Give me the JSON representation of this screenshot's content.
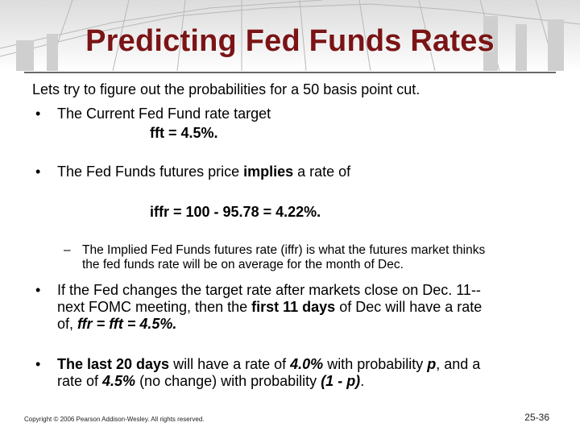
{
  "slide": {
    "title": "Predicting Fed Funds Rates",
    "intro": "Lets try to figure out the probabilities for a 50 basis point cut.",
    "bullet_symbol": "•",
    "dash_symbol": "–",
    "b1_text": "The Current Fed Fund rate target",
    "b1_formula": "fft = 4.5%.",
    "b2_pre": "The Fed Funds futures price ",
    "b2_bold": "implies",
    "b2_post": " a rate of",
    "b2_formula": "iffr =  100 - 95.78 =  4.22%.",
    "sub_line1": "The Implied Fed Funds futures rate (iffr) is what the futures market thinks",
    "sub_line2": "the fed funds rate will be on average for the month of Dec.",
    "b3_line1": "If the Fed changes the target rate after markets close on Dec. 11--",
    "b3_line2_pre": "next FOMC meeting, then the ",
    "b3_line2_bold": "first  11 days",
    "b3_line2_post": " of Dec will have a rate",
    "b3_line3_pre": "of, ",
    "b3_line3_bi": "ffr = fft =  4.5%.",
    "b4_line1_bold": "The last 20 days",
    "b4_line1_a": " will have a rate of ",
    "b4_line1_rate": "4.0%",
    "b4_line1_b": " with probability ",
    "b4_line1_p": "p",
    "b4_line1_c": ",  and a",
    "b4_line2_a": "rate of ",
    "b4_line2_rate": "4.5%",
    "b4_line2_b": " (no change) with probability ",
    "b4_line2_p": "(1 - p)",
    "b4_line2_c": "."
  },
  "footer": {
    "copyright": "Copyright © 2006 Pearson Addison-Wesley. All rights reserved.",
    "page": "25-36"
  },
  "colors": {
    "title": "#7a1416",
    "rule": "#6a6a6a"
  }
}
